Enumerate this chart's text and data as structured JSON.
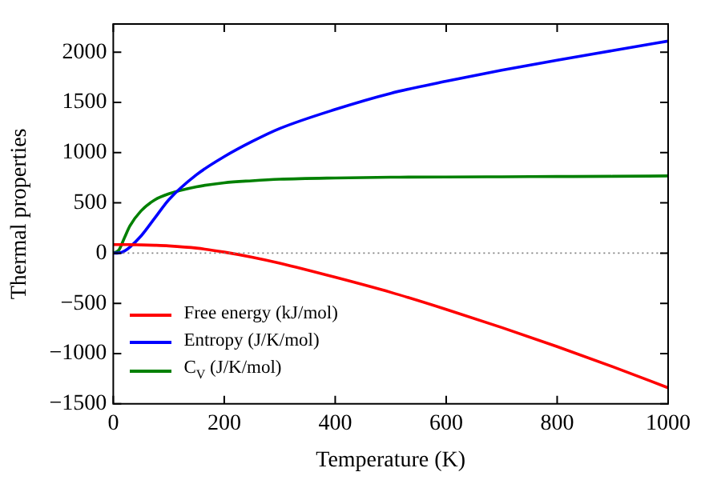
{
  "chart_data": {
    "type": "line",
    "xlabel": "Temperature (K)",
    "ylabel": "Thermal properties",
    "x": [
      0,
      10,
      20,
      30,
      50,
      75,
      100,
      150,
      200,
      250,
      300,
      400,
      500,
      600,
      700,
      800,
      900,
      1000
    ],
    "series": [
      {
        "name": "Free energy (kJ/mol)",
        "color": "#ff0000",
        "values": [
          85,
          85,
          85,
          84,
          82,
          78,
          72,
          50,
          10,
          -40,
          -100,
          -240,
          -390,
          -560,
          -740,
          -930,
          -1130,
          -1340
        ]
      },
      {
        "name": "Entropy (J/K/mol)",
        "color": "#0000ff",
        "values": [
          0,
          2,
          20,
          60,
          170,
          350,
          530,
          780,
          960,
          1110,
          1240,
          1430,
          1590,
          1710,
          1820,
          1920,
          2015,
          2110
        ]
      },
      {
        "name": "C$_{V}$ (J/K/mol)",
        "color": "#008000",
        "values": [
          0,
          30,
          150,
          270,
          420,
          530,
          590,
          660,
          700,
          720,
          735,
          748,
          755,
          758,
          760,
          762,
          764,
          768
        ]
      }
    ],
    "xlim": [
      0,
      1000
    ],
    "xticks": [
      0,
      200,
      400,
      600,
      800,
      1000
    ],
    "ylim": [
      -1500,
      2280
    ],
    "yticks": [
      -1500,
      -1000,
      -500,
      0,
      500,
      1000,
      1500,
      2000
    ],
    "ref_lines": [
      {
        "axis": "y",
        "value": 0,
        "color": "#808080",
        "line_style": "dotted"
      }
    ],
    "grid": false,
    "legend": "bottom left",
    "marker": "none",
    "line_style": "solid"
  }
}
